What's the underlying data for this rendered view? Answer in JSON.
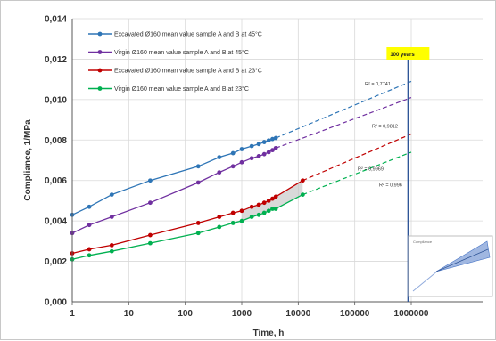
{
  "chart_data": {
    "type": "line",
    "xlabel": "Time, h",
    "ylabel": "Compliance, 1/MPa",
    "xscale": "log",
    "xlim": [
      1,
      1000000
    ],
    "ylim": [
      0,
      0.014
    ],
    "grid": true,
    "legend_position": "top-left",
    "x_tick_labels": [
      "1",
      "10",
      "100",
      "1000",
      "10000",
      "100000",
      "1000000"
    ],
    "y_tick_labels": [
      "0,000",
      "0,002",
      "0,004",
      "0,006",
      "0,008",
      "0,010",
      "0,012",
      "0,014"
    ],
    "series": [
      {
        "name": "Excavated Ø160 mean value sample A and B at 45°C",
        "color": "#2e75b6",
        "x": [
          1,
          2,
          5,
          24,
          170,
          400,
          700,
          1000,
          1500,
          2000,
          2500,
          3000,
          3500,
          4000
        ],
        "y": [
          0.0043,
          0.0047,
          0.0053,
          0.006,
          0.0067,
          0.00715,
          0.00735,
          0.00755,
          0.0077,
          0.0078,
          0.0079,
          0.00798,
          0.00805,
          0.0081
        ],
        "trend": {
          "x": [
            4000,
            1000000
          ],
          "y": [
            0.0081,
            0.0109
          ]
        },
        "r2_label": "R² = 0,7741"
      },
      {
        "name": "Virgin Ø160 mean value sample A and B at 45°C",
        "color": "#7030a0",
        "x": [
          1,
          2,
          5,
          24,
          170,
          400,
          700,
          1000,
          1500,
          2000,
          2500,
          3000,
          3500,
          4000
        ],
        "y": [
          0.0034,
          0.0038,
          0.0042,
          0.0049,
          0.0059,
          0.0064,
          0.0067,
          0.0069,
          0.0071,
          0.0072,
          0.0073,
          0.0074,
          0.0075,
          0.0076
        ],
        "trend": {
          "x": [
            4000,
            1000000
          ],
          "y": [
            0.0076,
            0.0101
          ]
        },
        "r2_label": "R² = 0,9812"
      },
      {
        "name": "Excavated Ø160 mean value sample A and B at 23°C",
        "color": "#c00000",
        "x": [
          1,
          2,
          5,
          24,
          170,
          400,
          700,
          1000,
          1500,
          2000,
          2500,
          3000,
          3500,
          4000,
          12000
        ],
        "y": [
          0.0024,
          0.0026,
          0.0028,
          0.0033,
          0.0039,
          0.0042,
          0.0044,
          0.0045,
          0.0047,
          0.0048,
          0.0049,
          0.005,
          0.0051,
          0.0052,
          0.006
        ],
        "trend": {
          "x": [
            12000,
            1000000
          ],
          "y": [
            0.006,
            0.0083
          ]
        },
        "r2_label": "R² = 0,9969"
      },
      {
        "name": "Virgin Ø160 mean value sample A and B at 23°C",
        "color": "#00b050",
        "x": [
          1,
          2,
          5,
          24,
          170,
          400,
          700,
          1000,
          1500,
          2000,
          2500,
          3000,
          3500,
          4000,
          12000
        ],
        "y": [
          0.0021,
          0.0023,
          0.0025,
          0.0029,
          0.0034,
          0.0037,
          0.0039,
          0.004,
          0.0042,
          0.0043,
          0.0044,
          0.0045,
          0.0046,
          0.0046,
          0.0053
        ],
        "trend": {
          "x": [
            12000,
            1000000
          ],
          "y": [
            0.0053,
            0.0074
          ]
        },
        "r2_label": "R² = 0,996"
      }
    ],
    "vertical_marker": {
      "x": 876000,
      "label": "100 years",
      "color": "#2f5597",
      "label_bg": "#ffff00"
    },
    "shaded_band": {
      "color": "#bfbfbf"
    },
    "inset_label": "Compliance"
  }
}
